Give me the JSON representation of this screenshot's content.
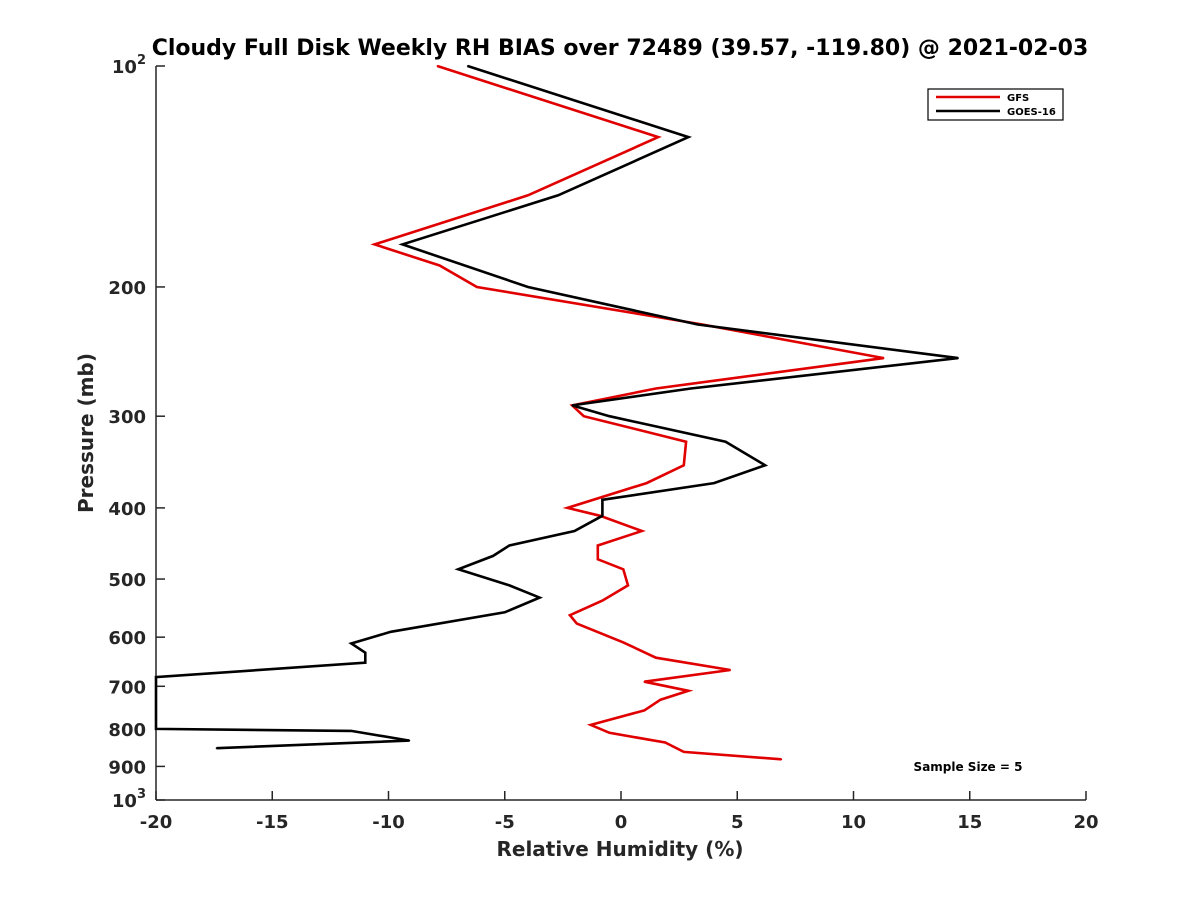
{
  "chart_data": {
    "type": "line",
    "title": "Cloudy Full Disk Weekly RH BIAS over 72489 (39.57, -119.80) @ 2021-02-03",
    "xlabel": "Relative Humidity (%)",
    "ylabel": "Pressure (mb)",
    "xlim": [
      -20,
      20
    ],
    "ylim": [
      100,
      1000
    ],
    "y_scale": "log",
    "y_reversed": true,
    "grid": false,
    "legend_position": "top-right",
    "xticks": [
      "-20",
      "-15",
      "-10",
      "-5",
      "0",
      "5",
      "10",
      "15",
      "20"
    ],
    "yticks": [
      {
        "value": 100,
        "base": "10",
        "exp": "2"
      },
      {
        "value": 200,
        "label": "200"
      },
      {
        "value": 300,
        "label": "300"
      },
      {
        "value": 400,
        "label": "400"
      },
      {
        "value": 500,
        "label": "500"
      },
      {
        "value": 600,
        "label": "600"
      },
      {
        "value": 700,
        "label": "700"
      },
      {
        "value": 800,
        "label": "800"
      },
      {
        "value": 900,
        "label": "900"
      },
      {
        "value": 1000,
        "base": "10",
        "exp": "3"
      }
    ],
    "series": [
      {
        "name": "GFS",
        "color": "#e00000",
        "points": [
          {
            "x": -7.9,
            "p": 100
          },
          {
            "x": 1.6,
            "p": 125
          },
          {
            "x": -4.0,
            "p": 150
          },
          {
            "x": -10.6,
            "p": 175
          },
          {
            "x": -7.8,
            "p": 187
          },
          {
            "x": -6.2,
            "p": 200
          },
          {
            "x": 3.5,
            "p": 225
          },
          {
            "x": 11.3,
            "p": 250
          },
          {
            "x": 1.5,
            "p": 275
          },
          {
            "x": -2.1,
            "p": 290
          },
          {
            "x": -1.6,
            "p": 300
          },
          {
            "x": 2.8,
            "p": 325
          },
          {
            "x": 2.7,
            "p": 350
          },
          {
            "x": 1.1,
            "p": 370
          },
          {
            "x": -2.3,
            "p": 400
          },
          {
            "x": -0.9,
            "p": 410
          },
          {
            "x": 0.9,
            "p": 430
          },
          {
            "x": -1.0,
            "p": 450
          },
          {
            "x": -1.0,
            "p": 470
          },
          {
            "x": 0.1,
            "p": 485
          },
          {
            "x": 0.3,
            "p": 510
          },
          {
            "x": -0.8,
            "p": 535
          },
          {
            "x": -2.2,
            "p": 560
          },
          {
            "x": -1.9,
            "p": 575
          },
          {
            "x": 0.1,
            "p": 610
          },
          {
            "x": 1.5,
            "p": 640
          },
          {
            "x": 4.7,
            "p": 665
          },
          {
            "x": 1.0,
            "p": 690
          },
          {
            "x": 2.9,
            "p": 710
          },
          {
            "x": 1.7,
            "p": 730
          },
          {
            "x": 1.0,
            "p": 755
          },
          {
            "x": -1.3,
            "p": 790
          },
          {
            "x": -0.5,
            "p": 810
          },
          {
            "x": 1.9,
            "p": 835
          },
          {
            "x": 2.7,
            "p": 860
          },
          {
            "x": 6.9,
            "p": 880
          }
        ]
      },
      {
        "name": "GOES-16",
        "color": "#000000",
        "points": [
          {
            "x": -6.6,
            "p": 100
          },
          {
            "x": 2.9,
            "p": 125
          },
          {
            "x": -2.7,
            "p": 150
          },
          {
            "x": -9.4,
            "p": 175
          },
          {
            "x": -4.0,
            "p": 200
          },
          {
            "x": 3.3,
            "p": 225
          },
          {
            "x": 14.5,
            "p": 250
          },
          {
            "x": 3.0,
            "p": 275
          },
          {
            "x": -2.1,
            "p": 290
          },
          {
            "x": -0.5,
            "p": 300
          },
          {
            "x": 4.5,
            "p": 325
          },
          {
            "x": 6.2,
            "p": 350
          },
          {
            "x": 4.0,
            "p": 370
          },
          {
            "x": -0.8,
            "p": 390
          },
          {
            "x": -0.8,
            "p": 410
          },
          {
            "x": -2.0,
            "p": 430
          },
          {
            "x": -4.8,
            "p": 450
          },
          {
            "x": -5.5,
            "p": 465
          },
          {
            "x": -7.0,
            "p": 485
          },
          {
            "x": -4.8,
            "p": 510
          },
          {
            "x": -3.5,
            "p": 530
          },
          {
            "x": -5.0,
            "p": 555
          },
          {
            "x": -9.9,
            "p": 590
          },
          {
            "x": -11.6,
            "p": 612
          },
          {
            "x": -11.0,
            "p": 630
          },
          {
            "x": -11.0,
            "p": 650
          },
          {
            "x": -20.0,
            "p": 680
          },
          {
            "x": -20.0,
            "p": 800
          },
          {
            "x": -11.6,
            "p": 805
          },
          {
            "x": -9.1,
            "p": 830
          },
          {
            "x": -17.4,
            "p": 850
          }
        ]
      }
    ],
    "annotation": "Sample Size = 5"
  }
}
